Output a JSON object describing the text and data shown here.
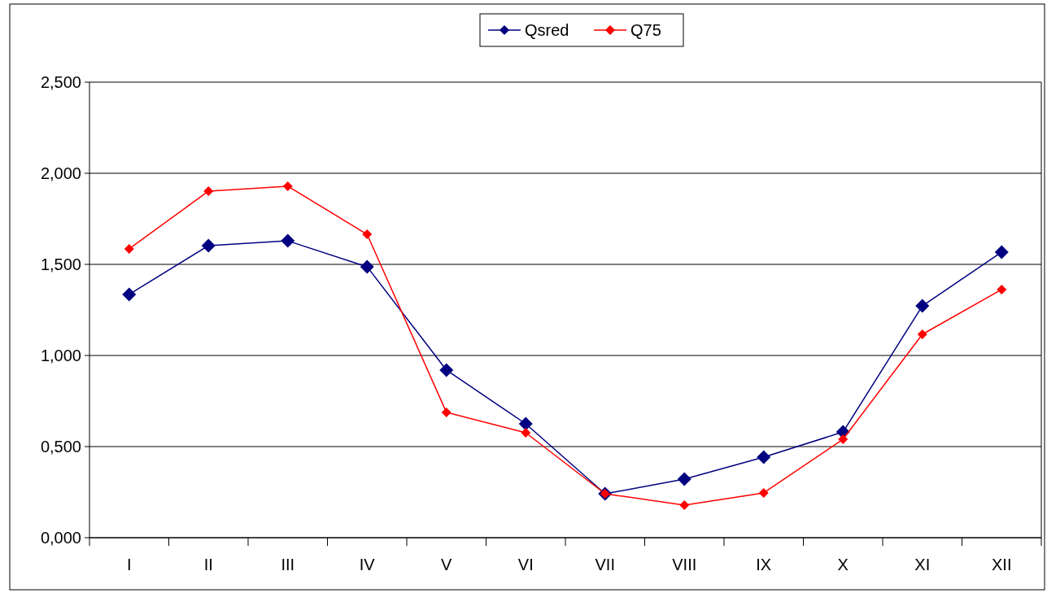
{
  "chart_data": {
    "type": "line",
    "categories": [
      "I",
      "II",
      "III",
      "IV",
      "V",
      "VI",
      "VII",
      "VIII",
      "IX",
      "X",
      "XI",
      "XII"
    ],
    "series": [
      {
        "name": "Qsred",
        "color": "#000080",
        "values": [
          1.335,
          1.603,
          1.629,
          1.487,
          0.92,
          0.625,
          0.241,
          0.321,
          0.442,
          0.58,
          1.272,
          1.567
        ]
      },
      {
        "name": "Q75",
        "color": "#ff0000",
        "values": [
          1.585,
          1.902,
          1.929,
          1.665,
          0.688,
          0.576,
          0.241,
          0.179,
          0.246,
          0.54,
          1.116,
          1.362
        ]
      }
    ],
    "ylim": [
      0,
      2.5
    ],
    "yticks": [
      {
        "value": 0,
        "label": "0,000"
      },
      {
        "value": 0.5,
        "label": "0,500"
      },
      {
        "value": 1,
        "label": "1,000"
      },
      {
        "value": 1.5,
        "label": "1,500"
      },
      {
        "value": 2,
        "label": "2,000"
      },
      {
        "value": 2.5,
        "label": "2,500"
      }
    ],
    "grid": "y",
    "legend": "top",
    "marker": "diamond",
    "line_style": "solid"
  }
}
